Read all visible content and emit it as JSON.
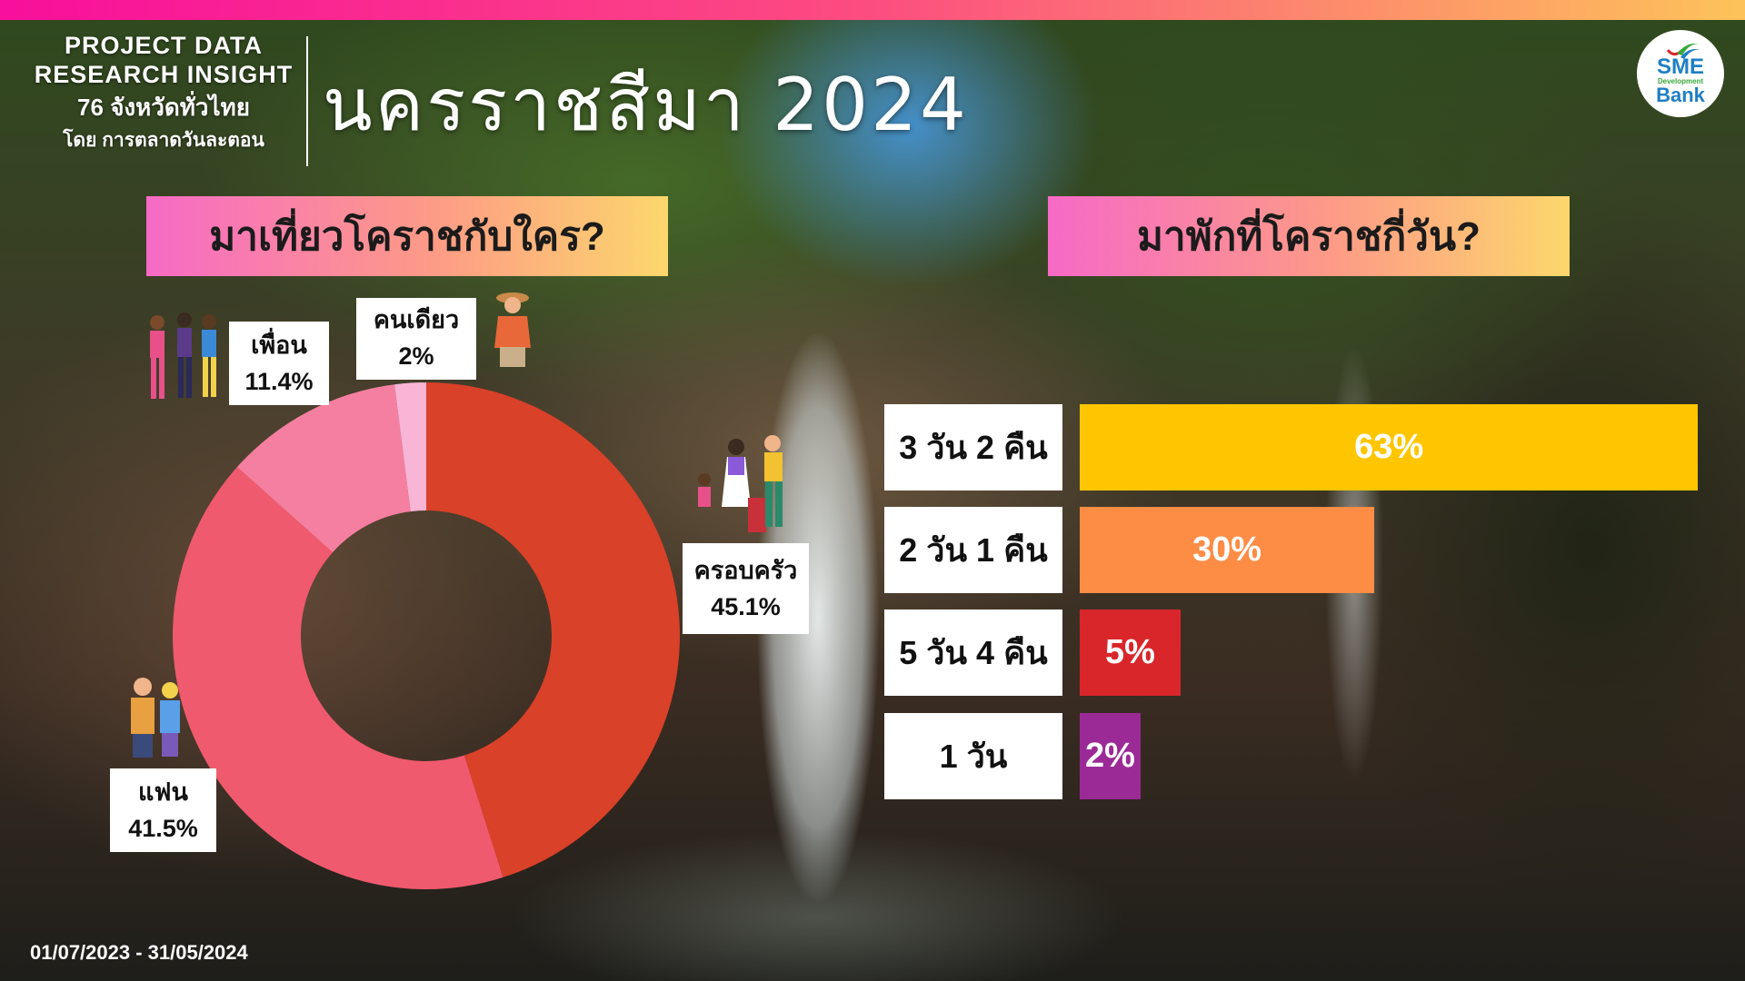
{
  "header": {
    "brand_line1": "PROJECT DATA",
    "brand_line2": "RESEARCH INSIGHT",
    "brand_line3": "76 จังหวัดทั่วไทย",
    "brand_line4": "โดย การตลาดวันละตอน",
    "title": "นครราชสีมา 2024",
    "logo": {
      "line1": "SME",
      "line2": "Development",
      "line3": "Bank"
    }
  },
  "left_section": {
    "heading": "มาเที่ยวโคราชกับใคร?",
    "chart_data": {
      "type": "pie",
      "variant": "donut",
      "categories": [
        "ครอบครัว",
        "แฟน",
        "เพื่อน",
        "คนเดียว"
      ],
      "values": [
        45.1,
        41.5,
        11.4,
        2
      ],
      "labels": [
        "45.1%",
        "41.5%",
        "11.4%",
        "2%"
      ],
      "colors": [
        "#d94128",
        "#f05a6e",
        "#f57fa0",
        "#f9b5d6"
      ],
      "unit": "%"
    }
  },
  "right_section": {
    "heading": "มาพักที่โคราชกี่วัน?",
    "chart_data": {
      "type": "bar",
      "orientation": "horizontal",
      "categories": [
        "3 วัน 2 คืน",
        "2 วัน 1 คืน",
        "5 วัน 4 คืน",
        "1 วัน"
      ],
      "values": [
        63,
        30,
        5,
        2
      ],
      "labels": [
        "63%",
        "30%",
        "5%",
        "2%"
      ],
      "colors": [
        "#ffc600",
        "#fd8c45",
        "#d8262a",
        "#9b2a96"
      ],
      "unit": "%"
    }
  },
  "footer": {
    "date_range": "01/07/2023 - 31/05/2024"
  }
}
